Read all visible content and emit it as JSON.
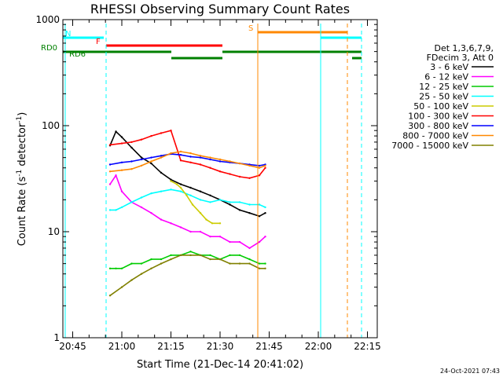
{
  "chart_data": {
    "type": "line",
    "title": "RHESSI Observing Summary Count Rates",
    "xlabel": "Start Time (21-Dec-14 20:41:02)",
    "ylabel_main": "Count Rate (s",
    "ylabel_sup1": "-1",
    "ylabel_mid": " detector",
    "ylabel_sup2": "-1",
    "ylabel_end": ")",
    "yscale": "log",
    "ylim": [
      1,
      1000
    ],
    "xlim_minutes": [
      20.7,
      22.3
    ],
    "x_units": "hours-of-day",
    "x_ticks": [
      {
        "value": 20.75,
        "label": "20:45"
      },
      {
        "value": 21.0,
        "label": "21:00"
      },
      {
        "value": 21.25,
        "label": "21:15"
      },
      {
        "value": 21.5,
        "label": "21:30"
      },
      {
        "value": 21.75,
        "label": "21:45"
      },
      {
        "value": 22.0,
        "label": "22:00"
      },
      {
        "value": 22.25,
        "label": "22:15"
      }
    ],
    "y_ticks": [
      {
        "value": 1,
        "label": "1"
      },
      {
        "value": 10,
        "label": "10"
      },
      {
        "value": 100,
        "label": "100"
      },
      {
        "value": 1000,
        "label": "1000"
      }
    ],
    "legend_header": [
      "Det 1,3,6,7,9,",
      "FDecim 3, Att 0"
    ],
    "series": [
      {
        "name": "3 - 6 keV",
        "color": "#000000",
        "x": [
          20.94,
          20.97,
          21.0,
          21.05,
          21.1,
          21.15,
          21.2,
          21.25,
          21.3,
          21.35,
          21.4,
          21.45,
          21.5,
          21.55,
          21.6,
          21.65,
          21.7,
          21.73
        ],
        "y": [
          65,
          88,
          78,
          62,
          50,
          44,
          36,
          31,
          28,
          26,
          24,
          22,
          20,
          18,
          16,
          15,
          14,
          15
        ]
      },
      {
        "name": "6 - 12 keV",
        "color": "#ff00ff",
        "x": [
          20.94,
          20.97,
          21.0,
          21.05,
          21.1,
          21.15,
          21.2,
          21.25,
          21.3,
          21.35,
          21.4,
          21.45,
          21.5,
          21.55,
          21.6,
          21.65,
          21.7,
          21.73
        ],
        "y": [
          28,
          34,
          24,
          19,
          17,
          15,
          13,
          12,
          11,
          10,
          10,
          9,
          9,
          8,
          8,
          7,
          8,
          9
        ]
      },
      {
        "name": "12 - 25 keV",
        "color": "#00cc00",
        "x": [
          20.94,
          20.97,
          21.0,
          21.05,
          21.1,
          21.15,
          21.2,
          21.25,
          21.3,
          21.35,
          21.4,
          21.45,
          21.5,
          21.55,
          21.6,
          21.65,
          21.7,
          21.73
        ],
        "y": [
          4.5,
          4.5,
          4.5,
          5,
          5,
          5.5,
          5.5,
          6,
          6,
          6.5,
          6,
          6,
          5.5,
          6,
          6,
          5.5,
          5,
          5
        ]
      },
      {
        "name": "25 - 50 keV",
        "color": "#00ffff",
        "x": [
          20.94,
          20.97,
          21.0,
          21.05,
          21.1,
          21.15,
          21.2,
          21.25,
          21.3,
          21.35,
          21.4,
          21.45,
          21.5,
          21.55,
          21.6,
          21.65,
          21.7,
          21.73
        ],
        "y": [
          16,
          16,
          17,
          19,
          21,
          23,
          24,
          25,
          24,
          22,
          20,
          19,
          20,
          19,
          19,
          18,
          18,
          17
        ]
      },
      {
        "name": "50 - 100 keV",
        "color": "#cccc00",
        "x": [
          21.25,
          21.28,
          21.3,
          21.33,
          21.36,
          21.4,
          21.43,
          21.46,
          21.5
        ],
        "y": [
          30,
          28,
          26,
          22,
          18,
          15,
          13,
          12,
          12
        ]
      },
      {
        "name": "100 - 300 keV",
        "color": "#ff0000",
        "x": [
          20.94,
          21.0,
          21.05,
          21.1,
          21.15,
          21.2,
          21.25,
          21.3,
          21.35,
          21.4,
          21.45,
          21.5,
          21.55,
          21.6,
          21.65,
          21.7,
          21.73
        ],
        "y": [
          66,
          68,
          70,
          74,
          80,
          85,
          90,
          47,
          45,
          43,
          40,
          37,
          35,
          33,
          32,
          34,
          40
        ]
      },
      {
        "name": "300 - 800 keV",
        "color": "#0000ff",
        "x": [
          20.94,
          21.0,
          21.05,
          21.1,
          21.15,
          21.2,
          21.25,
          21.3,
          21.35,
          21.4,
          21.45,
          21.5,
          21.55,
          21.6,
          21.65,
          21.7,
          21.73
        ],
        "y": [
          43,
          45,
          46,
          48,
          50,
          52,
          54,
          53,
          51,
          50,
          48,
          46,
          45,
          44,
          43,
          42,
          43
        ]
      },
      {
        "name": "800 - 7000 keV",
        "color": "#ff8800",
        "x": [
          20.94,
          21.0,
          21.05,
          21.1,
          21.15,
          21.2,
          21.25,
          21.3,
          21.35,
          21.4,
          21.45,
          21.5,
          21.55,
          21.6,
          21.65,
          21.7,
          21.73
        ],
        "y": [
          37,
          38,
          39,
          42,
          46,
          50,
          55,
          57,
          55,
          52,
          50,
          48,
          46,
          44,
          42,
          40,
          42
        ]
      },
      {
        "name": "7000 - 15000 keV",
        "color": "#808000",
        "x": [
          20.94,
          21.0,
          21.05,
          21.1,
          21.15,
          21.2,
          21.25,
          21.3,
          21.35,
          21.4,
          21.45,
          21.5,
          21.55,
          21.6,
          21.65,
          21.7,
          21.73
        ],
        "y": [
          2.5,
          3,
          3.5,
          4,
          4.5,
          5,
          5.5,
          6,
          6,
          6,
          5.5,
          5.5,
          5,
          5,
          5,
          4.5,
          4.5
        ]
      }
    ],
    "flag_labels": [
      {
        "text": "N",
        "color": "#00ffff"
      },
      {
        "text": "F",
        "color": "#ff0000"
      },
      {
        "text": "S",
        "color": "#ff8800"
      },
      {
        "text": "RD0",
        "color": "#008000"
      },
      {
        "text": "RD6",
        "color": "#008000"
      }
    ],
    "date_stamp": "24-Oct-2021 07:43"
  }
}
